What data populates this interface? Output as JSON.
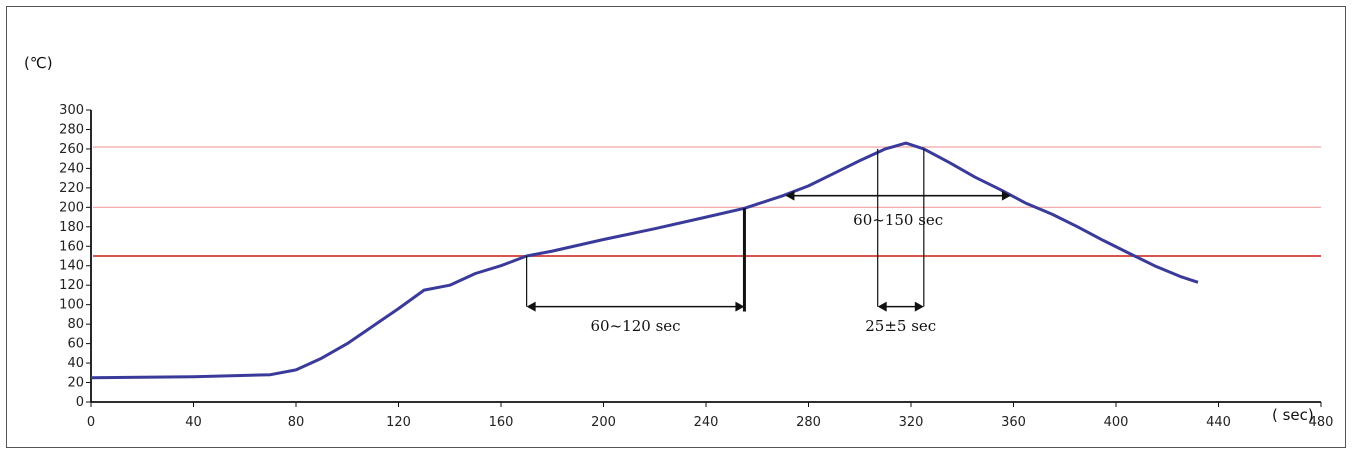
{
  "chart_data": {
    "type": "line",
    "title": "",
    "xlabel": "( sec)",
    "ylabel": "(℃)",
    "xlim": [
      0,
      480
    ],
    "ylim": [
      0,
      300
    ],
    "x_ticks": [
      "0",
      "40",
      "80",
      "120",
      "160",
      "200",
      "240",
      "280",
      "320",
      "360",
      "400",
      "440",
      "480"
    ],
    "y_ticks": [
      "0",
      "20",
      "40",
      "60",
      "80",
      "100",
      "120",
      "140",
      "160",
      "180",
      "200",
      "220",
      "240",
      "260",
      "280",
      "300"
    ],
    "series": [
      {
        "color": "#3a3a9a",
        "x": [
          0,
          40,
          70,
          80,
          90,
          100,
          110,
          120,
          130,
          140,
          150,
          160,
          170,
          180,
          200,
          220,
          240,
          255,
          270,
          280,
          290,
          300,
          310,
          318,
          325,
          335,
          345,
          355,
          365,
          375,
          385,
          395,
          405,
          415,
          425,
          432
        ],
        "y": [
          25,
          26,
          28,
          33,
          45,
          60,
          78,
          96,
          115,
          120,
          132,
          140,
          150,
          155,
          167,
          178,
          190,
          199,
          212,
          222,
          235,
          248,
          260,
          266,
          260,
          246,
          231,
          218,
          204,
          193,
          180,
          166,
          153,
          140,
          129,
          123
        ]
      }
    ],
    "reference_lines": [
      {
        "y": 150,
        "color": "#d9534f",
        "width": 2
      },
      {
        "y": 200,
        "color": "#f2a3a3",
        "width": 1.2
      },
      {
        "y": 262,
        "color": "#f2a3a3",
        "width": 1.2
      }
    ],
    "annotations": [
      {
        "label": "60~120 sec",
        "x_start": 170,
        "x_end": 255,
        "y_arrow": 98,
        "y_text": 73
      },
      {
        "label": "60~150 sec",
        "x_start": 271,
        "x_end": 359,
        "y_arrow": 212,
        "y_text": 182
      },
      {
        "label": "25±5 sec",
        "x_start": 307,
        "x_end": 325,
        "y_arrow": 98,
        "y_text": 73
      }
    ],
    "markers": [
      {
        "x": 170,
        "y_from": 98,
        "y_to": 150,
        "bold": false
      },
      {
        "x": 255,
        "y_from": 93,
        "y_to": 199,
        "bold": true
      },
      {
        "x": 307,
        "y_from": 98,
        "y_to": 260,
        "bold": false
      },
      {
        "x": 325,
        "y_from": 98,
        "y_to": 260,
        "bold": false
      }
    ],
    "grid": false,
    "legend": "none"
  }
}
